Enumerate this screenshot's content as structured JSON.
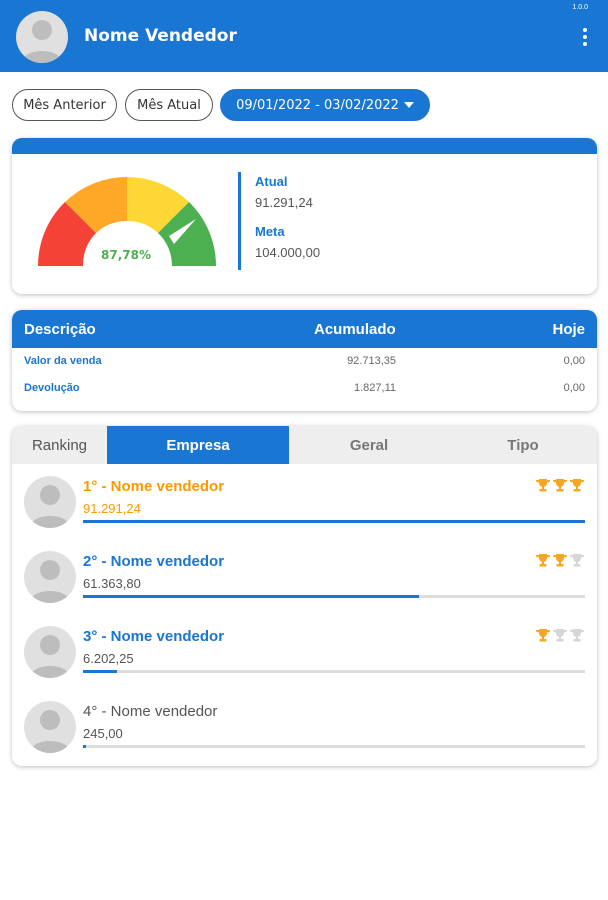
{
  "header": {
    "title": "Nome Vendedor",
    "version": "1.0.0",
    "menu_icon": "more-vertical-icon"
  },
  "filters": {
    "previous_month": "Mês Anterior",
    "current_month": "Mês Atual",
    "date_range": "09/01/2022 - 03/02/2022"
  },
  "gauge": {
    "percent_label": "87,78%",
    "percent_value": 87.78,
    "colors": [
      "#f44336",
      "#ffa726",
      "#fdd835",
      "#4caf50"
    ],
    "atual_label": "Atual",
    "atual_value": "91.291,24",
    "meta_label": "Meta",
    "meta_value": "104.000,00"
  },
  "summary_table": {
    "headers": [
      "Descrição",
      "Acumulado",
      "Hoje"
    ],
    "rows": [
      {
        "descricao": "Valor da venda",
        "acumulado": "92.713,35",
        "hoje": "0,00"
      },
      {
        "descricao": "Devolução",
        "acumulado": "1.827,11",
        "hoje": "0,00"
      }
    ]
  },
  "ranking": {
    "label": "Ranking",
    "tabs": [
      "Empresa",
      "Geral",
      "Tipo"
    ],
    "active_tab": "Empresa",
    "items": [
      {
        "position": "1° - Nome vendedor",
        "value": "91.291,24",
        "progress": 1.0,
        "trophies": 3,
        "color": "#ff9800"
      },
      {
        "position": "2° - Nome vendedor",
        "value": "61.363,80",
        "progress": 0.67,
        "trophies": 2,
        "color": "#1976d2"
      },
      {
        "position": "3° - Nome vendedor",
        "value": "6.202,25",
        "progress": 0.068,
        "trophies": 1,
        "color": "#1976d2"
      },
      {
        "position": "4° - Nome vendedor",
        "value": "245,00",
        "progress": 0.003,
        "trophies": 0,
        "color": "#555555"
      }
    ]
  }
}
